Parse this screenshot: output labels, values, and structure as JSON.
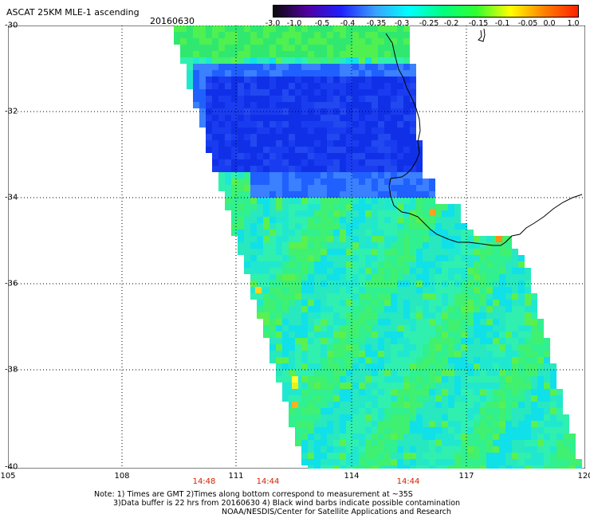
{
  "header": {
    "title": "ASCAT 25KM MLE-1 ascending",
    "date": "20160630"
  },
  "colorbar": {
    "labels": [
      "-3.0",
      "-1.0",
      "-0.5",
      "-0.4",
      "-0.35",
      "-0.3",
      "-0.25",
      "-0.2",
      "-0.15",
      "-0.1",
      "-0.05",
      "0.0",
      "1.0"
    ],
    "colors": [
      "#0a0a0a",
      "#5000a0",
      "#2020ff",
      "#3aa0ff",
      "#00ffff",
      "#00ff80",
      "#30ff30",
      "#ffff00",
      "#ff8000",
      "#ff2000"
    ]
  },
  "map": {
    "lat_labels": [
      "-30",
      "-32",
      "-34",
      "-36",
      "-38",
      "-40"
    ],
    "lon_labels": [
      "105",
      "108",
      "111",
      "114",
      "117",
      "120"
    ],
    "times": [
      "14:48",
      "14:44",
      "14:44"
    ]
  },
  "notes": [
    "Note: 1) Times are GMT 2)Times along bottom correspond to measurement at ~35S",
    "3)Data buffer is 22 hrs from 20160630 4) Black wind barbs indicate possible contamination",
    "NOAA/NESDIS/Center for Satellite Applications and Research"
  ]
}
